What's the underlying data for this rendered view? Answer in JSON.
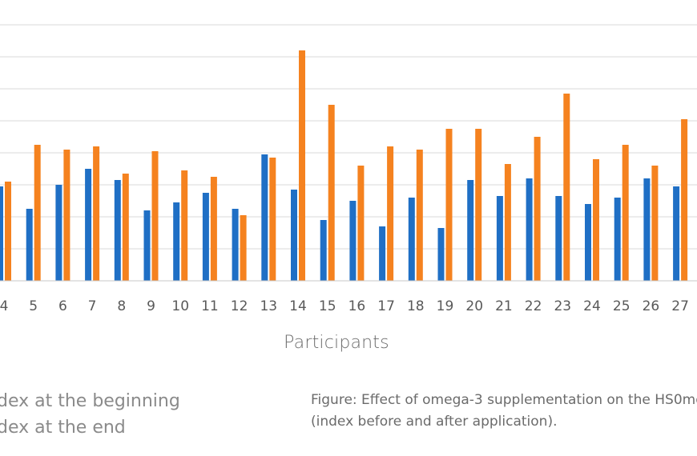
{
  "chart_data": {
    "type": "bar",
    "xlabel": "Participants",
    "ylabel": "",
    "ylim": [
      0,
      16
    ],
    "categories": [
      "4",
      "5",
      "6",
      "7",
      "8",
      "9",
      "10",
      "11",
      "12",
      "13",
      "14",
      "15",
      "16",
      "17",
      "18",
      "19",
      "20",
      "21",
      "22",
      "23",
      "24",
      "25",
      "26",
      "27"
    ],
    "series": [
      {
        "name": "Index at the beginning",
        "color": "#1f6fc5",
        "values": [
          5.9,
          4.5,
          6.0,
          7.0,
          6.3,
          4.4,
          4.9,
          5.5,
          4.5,
          7.9,
          5.7,
          3.8,
          5.0,
          3.4,
          5.2,
          3.3,
          6.3,
          5.3,
          6.4,
          5.3,
          4.8,
          5.2,
          6.4,
          5.9
        ]
      },
      {
        "name": "Index at the end",
        "color": "#f5821f",
        "values": [
          6.2,
          8.5,
          8.2,
          8.4,
          6.7,
          8.1,
          6.9,
          6.5,
          4.1,
          7.7,
          14.4,
          11.0,
          7.2,
          8.4,
          8.2,
          9.5,
          9.5,
          7.3,
          9.0,
          11.7,
          7.6,
          8.5,
          7.2,
          10.1
        ]
      }
    ]
  },
  "legend": {
    "item1": "dex at the beginning",
    "item2": "dex at the end"
  },
  "caption": {
    "line1": "Figure: Effect of omega-3 supplementation on the HS0me",
    "line2": "(index before and after application)."
  }
}
